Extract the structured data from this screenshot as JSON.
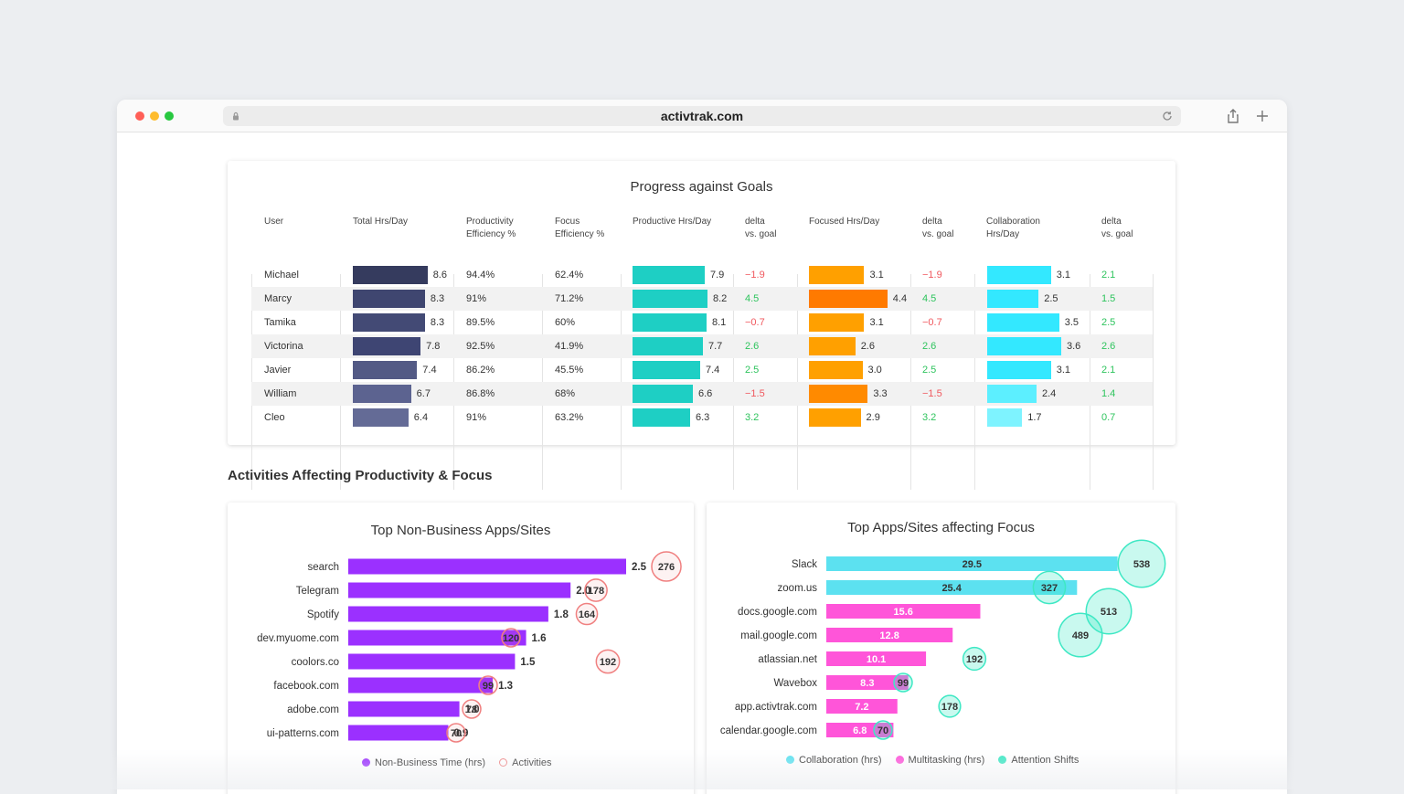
{
  "browser": {
    "url": "activtrak.com"
  },
  "goals": {
    "title": "Progress against Goals",
    "headers": {
      "user": "User",
      "total": "Total Hrs/Day",
      "prod_eff": "Productivity\nEfficiency %",
      "focus_eff": "Focus\nEfficiency %",
      "prod_hrs": "Productive Hrs/Day",
      "delta1": "delta\nvs. goal",
      "focused_hrs": "Focused Hrs/Day",
      "delta2": "delta\nvs. goal",
      "collab_hrs": "Collaboration\nHrs/Day",
      "delta3": "delta\nvs. goal"
    },
    "rows": [
      {
        "user": "Michael",
        "total": "8.6",
        "prod_eff": "94.4%",
        "focus_eff": "62.4%",
        "prod_hrs": "7.9",
        "delta_prod": "−1.9",
        "focused_hrs": "3.1",
        "delta_focus": "−1.9",
        "collab_hrs": "3.1",
        "delta_collab": "2.1"
      },
      {
        "user": "Marcy",
        "total": "8.3",
        "prod_eff": "91%",
        "focus_eff": "71.2%",
        "prod_hrs": "8.2",
        "delta_prod": "4.5",
        "focused_hrs": "4.4",
        "delta_focus": "4.5",
        "collab_hrs": "2.5",
        "delta_collab": "1.5"
      },
      {
        "user": "Tamika",
        "total": "8.3",
        "prod_eff": "89.5%",
        "focus_eff": "60%",
        "prod_hrs": "8.1",
        "delta_prod": "−0.7",
        "focused_hrs": "3.1",
        "delta_focus": "−0.7",
        "collab_hrs": "3.5",
        "delta_collab": "2.5"
      },
      {
        "user": "Victorina",
        "total": "7.8",
        "prod_eff": "92.5%",
        "focus_eff": "41.9%",
        "prod_hrs": "7.7",
        "delta_prod": "2.6",
        "focused_hrs": "2.6",
        "delta_focus": "2.6",
        "collab_hrs": "3.6",
        "delta_collab": "2.6"
      },
      {
        "user": "Javier",
        "total": "7.4",
        "prod_eff": "86.2%",
        "focus_eff": "45.5%",
        "prod_hrs": "7.4",
        "delta_prod": "2.5",
        "focused_hrs": "3.0",
        "delta_focus": "2.5",
        "collab_hrs": "3.1",
        "delta_collab": "2.1"
      },
      {
        "user": "William",
        "total": "6.7",
        "prod_eff": "86.8%",
        "focus_eff": "68%",
        "prod_hrs": "6.6",
        "delta_prod": "−1.5",
        "focused_hrs": "3.3",
        "delta_focus": "−1.5",
        "collab_hrs": "2.4",
        "delta_collab": "1.4"
      },
      {
        "user": "Cleo",
        "total": "6.4",
        "prod_eff": "91%",
        "focus_eff": "63.2%",
        "prod_hrs": "6.3",
        "delta_prod": "3.2",
        "focused_hrs": "2.9",
        "delta_focus": "3.2",
        "collab_hrs": "1.7",
        "delta_collab": "0.7"
      }
    ],
    "colors": {
      "total": [
        "#353b5e",
        "#3f4670",
        "#434a75",
        "#3e4573",
        "#535a85",
        "#5c6390",
        "#646b96"
      ],
      "productive": "#1ecfc4",
      "focused": [
        "#ffa000",
        "#ff7a00",
        "#ffa000",
        "#ffa000",
        "#ffa000",
        "#ff8a00",
        "#ffa000"
      ],
      "collaboration": [
        "#33e8ff",
        "#33e8ff",
        "#33e8ff",
        "#33e8ff",
        "#33e8ff",
        "#5cefff",
        "#7ef3ff"
      ],
      "negative": "#f0585e",
      "positive": "#2ec45d"
    }
  },
  "section_heading": "Activities Affecting Productivity & Focus",
  "chart_data": [
    {
      "type": "bar",
      "title": "Top Non-Business Apps/Sites",
      "categories": [
        "search",
        "Telegram",
        "Spotify",
        "dev.myuome.com",
        "coolors.co",
        "facebook.com",
        "adobe.com",
        "ui-patterns.com"
      ],
      "series": [
        {
          "name": "Non-Business Time (hrs)",
          "values": [
            2.5,
            2.0,
            1.8,
            1.6,
            1.5,
            1.3,
            1.0,
            0.9
          ],
          "color": "#9b30ff"
        },
        {
          "name": "Activities",
          "values": [
            276,
            178,
            164,
            120,
            192,
            99,
            78,
            70
          ],
          "color": "#f08080"
        }
      ]
    },
    {
      "type": "bar",
      "title": "Top Apps/Sites affecting Focus",
      "categories": [
        "Slack",
        "zoom.us",
        "docs.google.com",
        "mail.google.com",
        "atlassian.net",
        "Wavebox",
        "app.activtrak.com",
        "calendar.google.com"
      ],
      "series": [
        {
          "name": "Collaboration (hrs)",
          "values": [
            29.5,
            25.4,
            null,
            null,
            null,
            null,
            null,
            null
          ],
          "color": "#5ce1f0"
        },
        {
          "name": "Multitasking (hrs)",
          "values": [
            null,
            null,
            15.6,
            12.8,
            10.1,
            8.3,
            7.2,
            6.8
          ],
          "color": "#ff55d9"
        },
        {
          "name": "Attention Shifts",
          "values": [
            538,
            327,
            513,
            489,
            192,
            99,
            178,
            70
          ],
          "color": "#3ee8c4"
        }
      ]
    }
  ]
}
